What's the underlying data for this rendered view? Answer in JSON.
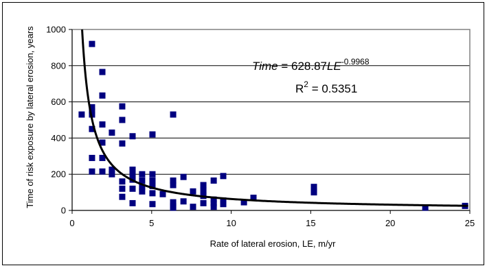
{
  "chart_data": {
    "type": "scatter",
    "xlabel": "Rate of lateral erosion, LE, m/yr",
    "ylabel": "Time of risk exposure by lateral erosion, years",
    "xlim": [
      0,
      25
    ],
    "ylim": [
      0,
      1000
    ],
    "xticks": [
      "0",
      "5",
      "10",
      "15",
      "20",
      "25"
    ],
    "yticks": [
      "0",
      "200",
      "400",
      "600",
      "800",
      "1000"
    ],
    "grid": "horizontal",
    "marker_color": "#000080",
    "trend_color": "#000000",
    "plot_border_color": "#808080",
    "trendline": {
      "type": "power",
      "coefficient": 628.87,
      "exponent": -0.9968
    },
    "annotation": {
      "eq_var": "Time",
      "eq_mid": " = 628.87",
      "eq_var2": "LE",
      "eq_exp": "-0.9968",
      "r2_base": "R",
      "r2_sup": "2",
      "r2_value": " = 0.5351"
    },
    "points": [
      [
        0.6,
        530
      ],
      [
        1.25,
        920
      ],
      [
        1.25,
        570
      ],
      [
        1.25,
        550
      ],
      [
        1.25,
        530
      ],
      [
        1.25,
        450
      ],
      [
        1.25,
        290
      ],
      [
        1.25,
        215
      ],
      [
        1.9,
        765
      ],
      [
        1.9,
        635
      ],
      [
        1.9,
        475
      ],
      [
        1.9,
        375
      ],
      [
        1.9,
        290
      ],
      [
        1.9,
        215
      ],
      [
        2.5,
        430
      ],
      [
        2.5,
        225
      ],
      [
        2.5,
        200
      ],
      [
        3.15,
        575
      ],
      [
        3.15,
        500
      ],
      [
        3.15,
        370
      ],
      [
        3.15,
        160
      ],
      [
        3.15,
        120
      ],
      [
        3.15,
        75
      ],
      [
        3.8,
        410
      ],
      [
        3.8,
        225
      ],
      [
        3.8,
        195
      ],
      [
        3.8,
        170
      ],
      [
        3.8,
        120
      ],
      [
        3.8,
        40
      ],
      [
        4.4,
        200
      ],
      [
        4.4,
        165
      ],
      [
        4.4,
        130
      ],
      [
        4.4,
        105
      ],
      [
        5.05,
        420
      ],
      [
        5.05,
        200
      ],
      [
        5.05,
        165
      ],
      [
        5.05,
        135
      ],
      [
        5.05,
        95
      ],
      [
        5.05,
        35
      ],
      [
        5.7,
        90
      ],
      [
        6.35,
        530
      ],
      [
        6.35,
        165
      ],
      [
        6.35,
        140
      ],
      [
        6.35,
        45
      ],
      [
        6.35,
        25
      ],
      [
        6.35,
        15
      ],
      [
        7.0,
        185
      ],
      [
        7.0,
        50
      ],
      [
        7.6,
        105
      ],
      [
        7.6,
        20
      ],
      [
        8.25,
        140
      ],
      [
        8.25,
        110
      ],
      [
        8.25,
        80
      ],
      [
        8.25,
        40
      ],
      [
        8.9,
        165
      ],
      [
        8.9,
        60
      ],
      [
        8.9,
        40
      ],
      [
        8.9,
        20
      ],
      [
        9.5,
        190
      ],
      [
        9.5,
        55
      ],
      [
        9.5,
        35
      ],
      [
        10.8,
        45
      ],
      [
        11.4,
        70
      ],
      [
        15.2,
        130
      ],
      [
        15.2,
        110
      ],
      [
        15.2,
        100
      ],
      [
        22.2,
        15
      ],
      [
        24.7,
        25
      ]
    ]
  }
}
